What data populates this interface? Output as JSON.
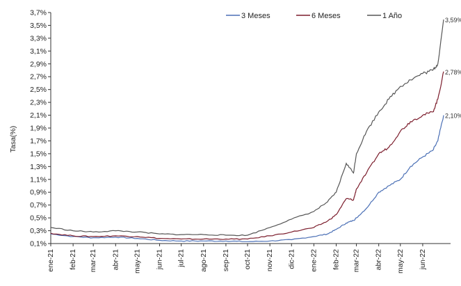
{
  "chart_data": {
    "type": "line",
    "ylabel": "Tasa(%)",
    "xlabel": "",
    "ylim": [
      0.1,
      3.7
    ],
    "yticks": [
      "3,7%",
      "3,5%",
      "3,3%",
      "3,1%",
      "2,9%",
      "2,7%",
      "2,5%",
      "2,3%",
      "2,1%",
      "1,9%",
      "1,7%",
      "1,5%",
      "1,3%",
      "1,1%",
      "0,9%",
      "0,7%",
      "0,5%",
      "0,3%",
      "0,1%"
    ],
    "ytick_values": [
      3.7,
      3.5,
      3.3,
      3.1,
      2.9,
      2.7,
      2.5,
      2.3,
      2.1,
      1.9,
      1.7,
      1.5,
      1.3,
      1.1,
      0.9,
      0.7,
      0.5,
      0.3,
      0.1
    ],
    "xticks": [
      "ene-21",
      "feb-21",
      "mar-21",
      "abr-21",
      "may-21",
      "jun-21",
      "jul-21",
      "ago-21",
      "sep-21",
      "oct-21",
      "nov-21",
      "dic-21",
      "ene-22",
      "feb-22",
      "mar-22",
      "abr-22",
      "may-22",
      "jun-22"
    ],
    "x": [
      "2021-01-01",
      "2021-02-01",
      "2021-03-01",
      "2021-04-01",
      "2021-05-01",
      "2021-06-01",
      "2021-07-01",
      "2021-08-01",
      "2021-09-01",
      "2021-10-01",
      "2021-11-01",
      "2021-12-01",
      "2022-01-01",
      "2022-01-20",
      "2022-02-01",
      "2022-02-15",
      "2022-02-25",
      "2022-03-01",
      "2022-03-15",
      "2022-04-01",
      "2022-04-15",
      "2022-05-01",
      "2022-05-15",
      "2022-06-01",
      "2022-06-15",
      "2022-06-22",
      "2022-06-30"
    ],
    "series": [
      {
        "name": "3 Meses",
        "color": "#4a6fb5",
        "values": [
          0.25,
          0.21,
          0.19,
          0.2,
          0.18,
          0.15,
          0.14,
          0.14,
          0.14,
          0.13,
          0.14,
          0.16,
          0.21,
          0.25,
          0.32,
          0.42,
          0.46,
          0.5,
          0.65,
          0.9,
          1.0,
          1.1,
          1.3,
          1.45,
          1.55,
          1.7,
          2.1
        ]
      },
      {
        "name": "6 Meses",
        "color": "#7b1c2b",
        "values": [
          0.26,
          0.22,
          0.21,
          0.22,
          0.21,
          0.18,
          0.17,
          0.17,
          0.17,
          0.17,
          0.22,
          0.28,
          0.35,
          0.45,
          0.55,
          0.8,
          0.78,
          0.95,
          1.2,
          1.5,
          1.6,
          1.85,
          2.0,
          2.1,
          2.15,
          2.35,
          2.78
        ]
      },
      {
        "name": "1 Año",
        "color": "#555555",
        "values": [
          0.35,
          0.3,
          0.28,
          0.3,
          0.28,
          0.25,
          0.24,
          0.24,
          0.23,
          0.23,
          0.35,
          0.48,
          0.6,
          0.75,
          0.9,
          1.35,
          1.2,
          1.5,
          1.85,
          2.15,
          2.35,
          2.55,
          2.65,
          2.75,
          2.8,
          2.9,
          3.59
        ]
      }
    ],
    "end_labels": [
      "2,10%",
      "2,78%",
      "3,59%"
    ],
    "grid": false,
    "legend_position": "top-right"
  }
}
